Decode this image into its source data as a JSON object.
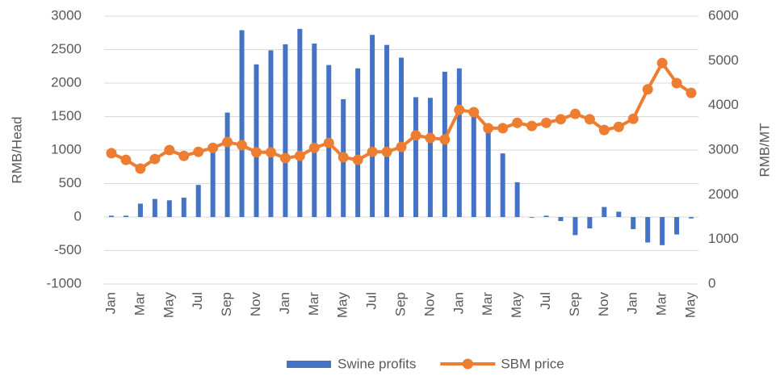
{
  "chart_data": {
    "type": "bar-line",
    "categories": [
      "Jan",
      null,
      "Mar",
      null,
      "May",
      null,
      "Jul",
      null,
      "Sep",
      null,
      "Nov",
      null,
      "Jan",
      null,
      "Mar",
      null,
      "May",
      null,
      "Jul",
      null,
      "Sep",
      null,
      "Nov",
      null,
      "Jan",
      null,
      "Mar",
      null,
      "May",
      null,
      "Jul",
      null,
      "Sep",
      null,
      "Nov",
      null,
      "Jan",
      null,
      "Mar",
      null,
      "May"
    ],
    "series": [
      {
        "name": "Swine profits",
        "type": "bar",
        "color": "#4472c4",
        "values": [
          20,
          20,
          200,
          270,
          250,
          290,
          480,
          1070,
          1560,
          2790,
          2280,
          2490,
          2580,
          2810,
          2590,
          2270,
          1760,
          2220,
          2720,
          2570,
          2380,
          1790,
          1780,
          2170,
          2220,
          1530,
          1350,
          950,
          520,
          -10,
          20,
          -60,
          -270,
          -170,
          150,
          80,
          -180,
          -380,
          -420,
          -260,
          -20
        ]
      },
      {
        "name": "SBM price",
        "type": "line",
        "axis": "y2",
        "color": "#ed7d31",
        "values": [
          2930,
          2780,
          2585,
          2800,
          3000,
          2870,
          2960,
          3050,
          3180,
          3110,
          2950,
          2950,
          2820,
          2870,
          3050,
          3160,
          2840,
          2780,
          2960,
          2960,
          3070,
          3330,
          3270,
          3240,
          3900,
          3850,
          3490,
          3490,
          3610,
          3540,
          3610,
          3690,
          3810,
          3690,
          3450,
          3520,
          3700,
          4360,
          4950,
          4500,
          4280
        ]
      }
    ],
    "y_label": "RMB/Head",
    "y2_label": "RMB/MT",
    "ylim": [
      -1000,
      3000
    ],
    "yticks": [
      -1000,
      -500,
      0,
      500,
      1000,
      1500,
      2000,
      2500,
      3000
    ],
    "y2lim": [
      0,
      6000
    ],
    "y2ticks": [
      0,
      1000,
      2000,
      3000,
      4000,
      5000,
      6000
    ],
    "grid": true,
    "legend": "bottom"
  }
}
